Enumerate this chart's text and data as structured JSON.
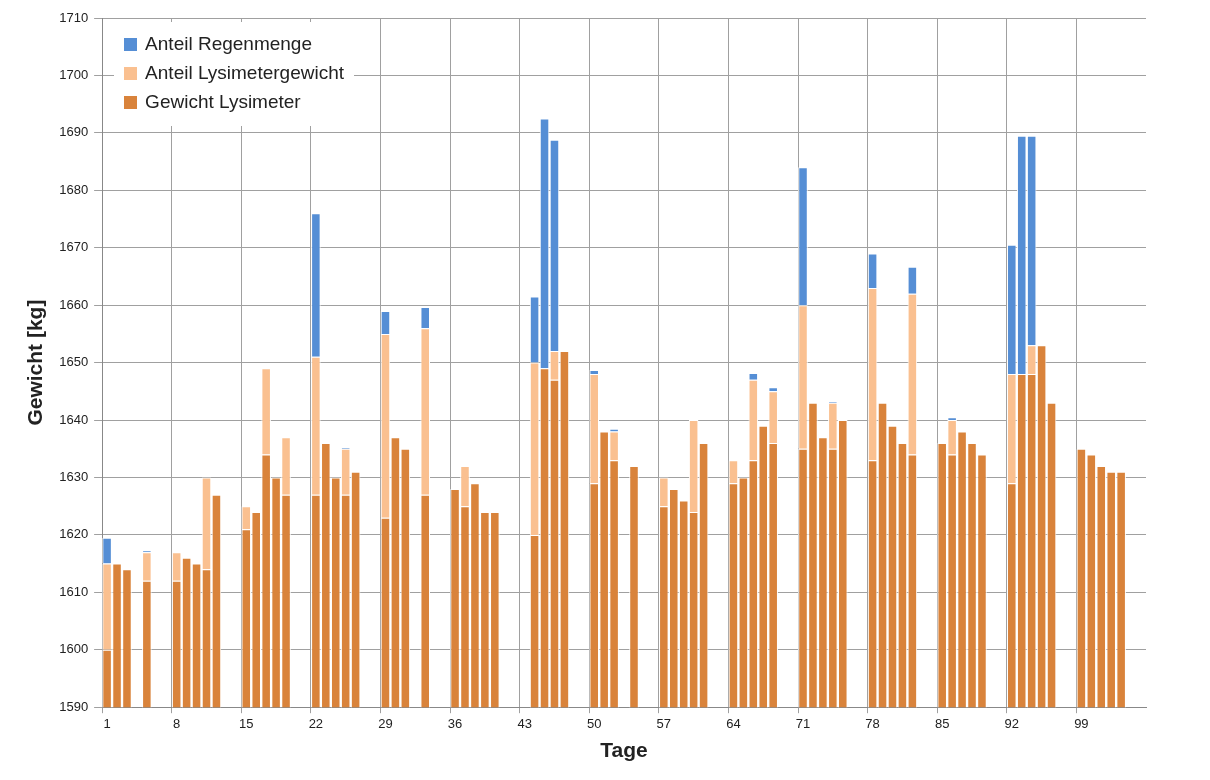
{
  "chart_data": {
    "type": "bar",
    "xlabel": "Tage",
    "ylabel": "Gewicht [kg]",
    "ylim": [
      1590,
      1710
    ],
    "yticks": [
      1590,
      1600,
      1610,
      1620,
      1630,
      1640,
      1650,
      1660,
      1670,
      1680,
      1690,
      1700,
      1710
    ],
    "grid": true,
    "legend": "top left",
    "categories": [
      "1",
      null,
      null,
      null,
      null,
      null,
      null,
      "8",
      null,
      null,
      null,
      null,
      null,
      null,
      "15",
      null,
      null,
      null,
      null,
      null,
      null,
      "22",
      null,
      null,
      null,
      null,
      null,
      null,
      "29",
      null,
      null,
      null,
      null,
      null,
      null,
      "36",
      null,
      null,
      null,
      null,
      null,
      null,
      "43",
      null,
      null,
      null,
      null,
      null,
      null,
      "50",
      null,
      null,
      null,
      null,
      null,
      null,
      "57",
      null,
      null,
      null,
      null,
      null,
      null,
      "64",
      null,
      null,
      null,
      null,
      null,
      null,
      "71",
      null,
      null,
      null,
      null,
      null,
      null,
      "78",
      null,
      null,
      null,
      null,
      null,
      null,
      "85",
      null,
      null,
      null,
      null,
      null,
      null,
      "92",
      null,
      null,
      null,
      null,
      null,
      null,
      "99",
      null,
      null,
      null,
      null,
      null,
      null
    ],
    "series": [
      {
        "name": "Gewicht Lysimeter",
        "color": "#d9833b",
        "values": [
          1600,
          1615,
          1614,
          null,
          1612,
          null,
          null,
          1612,
          1616,
          1615,
          1614,
          1627,
          null,
          null,
          1621,
          1624,
          1634,
          1630,
          1627,
          null,
          null,
          1627,
          1636,
          1630,
          1627,
          1631,
          null,
          null,
          1623,
          1637,
          1635,
          null,
          1627,
          null,
          null,
          1628,
          1625,
          1629,
          1624,
          1624,
          null,
          null,
          null,
          1620,
          1649,
          1647,
          1652,
          null,
          null,
          1629,
          1638,
          1633,
          null,
          1632,
          null,
          null,
          1625,
          1628,
          1626,
          1624,
          1636,
          null,
          null,
          1629,
          1630,
          1633,
          1639,
          1636,
          null,
          null,
          1635,
          1643,
          1637,
          1635,
          1640,
          null,
          null,
          1633,
          1643,
          1639,
          1636,
          1634,
          null,
          null,
          1636,
          1634,
          1638,
          1636,
          1634,
          null,
          null,
          1629,
          1648,
          1648,
          1653,
          1643,
          null,
          null,
          1635,
          1634,
          1632,
          1631,
          1631,
          null,
          null
        ]
      },
      {
        "name": "Anteil Lysimetergewicht",
        "color": "#fac090",
        "values": [
          15,
          null,
          null,
          null,
          5,
          null,
          null,
          5,
          null,
          null,
          16,
          null,
          null,
          null,
          4,
          null,
          15,
          null,
          10,
          null,
          null,
          24,
          null,
          null,
          8,
          null,
          null,
          null,
          32,
          null,
          null,
          null,
          29,
          null,
          null,
          null,
          7,
          null,
          null,
          null,
          null,
          null,
          null,
          30,
          null,
          5,
          null,
          null,
          null,
          19,
          null,
          5,
          null,
          null,
          null,
          null,
          5,
          null,
          null,
          16,
          null,
          null,
          null,
          4,
          null,
          14,
          null,
          9,
          null,
          null,
          25,
          null,
          null,
          8,
          null,
          null,
          null,
          30,
          null,
          null,
          null,
          28,
          null,
          null,
          null,
          6,
          null,
          null,
          null,
          null,
          null,
          19,
          null,
          5,
          null,
          null,
          null,
          null,
          null,
          null,
          null,
          null,
          null,
          null,
          null
        ],
        "base": [
          1600,
          null,
          null,
          null,
          1612,
          null,
          null,
          1612,
          null,
          null,
          1614,
          null,
          null,
          null,
          1621,
          null,
          1634,
          null,
          1627,
          null,
          null,
          1627,
          null,
          null,
          1627,
          null,
          null,
          null,
          1623,
          null,
          null,
          null,
          1627,
          null,
          null,
          null,
          1625,
          null,
          null,
          null,
          null,
          null,
          null,
          1620,
          null,
          1647,
          null,
          null,
          null,
          1629,
          null,
          1633,
          null,
          null,
          null,
          null,
          1625,
          null,
          null,
          1624,
          null,
          null,
          null,
          1629,
          null,
          1633,
          null,
          1636,
          null,
          null,
          1635,
          null,
          null,
          1635,
          null,
          null,
          null,
          1633,
          null,
          null,
          null,
          1634,
          null,
          null,
          null,
          1634,
          null,
          null,
          null,
          null,
          null,
          1629,
          null,
          1648,
          null,
          null,
          null,
          null,
          null,
          null,
          null,
          null,
          null,
          null,
          null
        ]
      },
      {
        "name": "Anteil Regenmenge",
        "color": "#558ed5",
        "values": [
          4.5,
          null,
          null,
          null,
          0.3,
          null,
          null,
          null,
          null,
          null,
          null,
          null,
          null,
          null,
          null,
          null,
          null,
          null,
          null,
          null,
          null,
          25,
          null,
          null,
          0.3,
          null,
          null,
          null,
          4,
          null,
          null,
          null,
          3.7,
          null,
          null,
          null,
          null,
          null,
          null,
          null,
          null,
          null,
          null,
          11.5,
          43.5,
          36.8,
          null,
          null,
          null,
          0.7,
          null,
          0.5,
          null,
          null,
          null,
          null,
          null,
          null,
          null,
          null,
          null,
          null,
          null,
          null,
          null,
          1.2,
          null,
          0.7,
          null,
          null,
          24,
          null,
          null,
          0.3,
          null,
          null,
          null,
          6,
          null,
          null,
          null,
          4.7,
          null,
          null,
          null,
          0.5,
          null,
          null,
          null,
          null,
          null,
          22.5,
          41.5,
          36.5,
          null,
          null,
          null,
          null,
          null,
          null,
          null,
          null,
          null,
          null,
          null
        ],
        "base": [
          1615,
          null,
          null,
          null,
          1617,
          null,
          null,
          null,
          null,
          null,
          null,
          null,
          null,
          null,
          null,
          null,
          null,
          null,
          null,
          null,
          null,
          1651,
          null,
          null,
          1635,
          null,
          null,
          null,
          1655,
          null,
          null,
          null,
          1656,
          null,
          null,
          null,
          null,
          null,
          null,
          null,
          null,
          null,
          null,
          1650,
          1649,
          1652,
          null,
          null,
          null,
          1648,
          null,
          1638,
          null,
          null,
          null,
          null,
          null,
          null,
          null,
          null,
          null,
          null,
          null,
          null,
          null,
          1647,
          null,
          1645,
          null,
          null,
          1660,
          null,
          null,
          1643,
          null,
          null,
          null,
          1663,
          null,
          null,
          null,
          1662,
          null,
          null,
          null,
          1640,
          null,
          null,
          null,
          null,
          null,
          1648,
          1648,
          1653,
          null,
          null,
          null,
          null,
          null,
          null,
          null,
          null,
          null,
          null,
          null
        ]
      }
    ]
  }
}
